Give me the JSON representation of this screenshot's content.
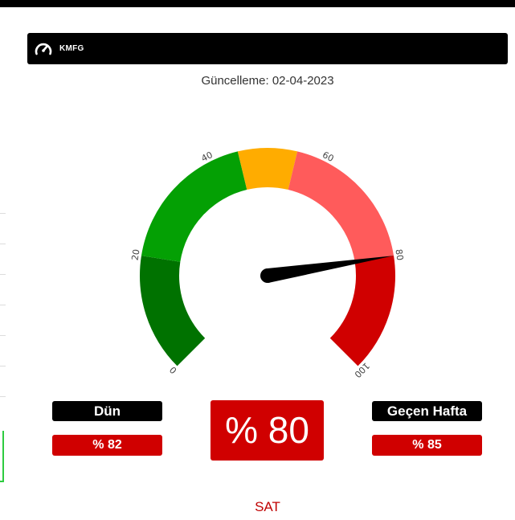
{
  "header": {
    "title": "KMFG",
    "icon": "speedometer-icon"
  },
  "update": {
    "label": "Güncelleme:",
    "date": "02-04-2023"
  },
  "gauge": {
    "value": 80,
    "min": 0,
    "max": 100,
    "tick_labels": [
      "0",
      "20",
      "40",
      "60",
      "80",
      "100"
    ],
    "bands": [
      {
        "from": 0,
        "to": 20,
        "color": "#007200"
      },
      {
        "from": 20,
        "to": 45,
        "color": "#04a004"
      },
      {
        "from": 45,
        "to": 55,
        "color": "#ffac00"
      },
      {
        "from": 55,
        "to": 80,
        "color": "#ff5b5b"
      },
      {
        "from": 80,
        "to": 100,
        "color": "#d00000"
      }
    ]
  },
  "yesterday": {
    "label": "Dün",
    "value": "% 82"
  },
  "current": {
    "value": "% 80"
  },
  "last_week": {
    "label": "Geçen Hafta",
    "value": "% 85"
  },
  "signal": "SAT",
  "colors": {
    "accent_red": "#d00000",
    "signal_text": "#c00000"
  }
}
